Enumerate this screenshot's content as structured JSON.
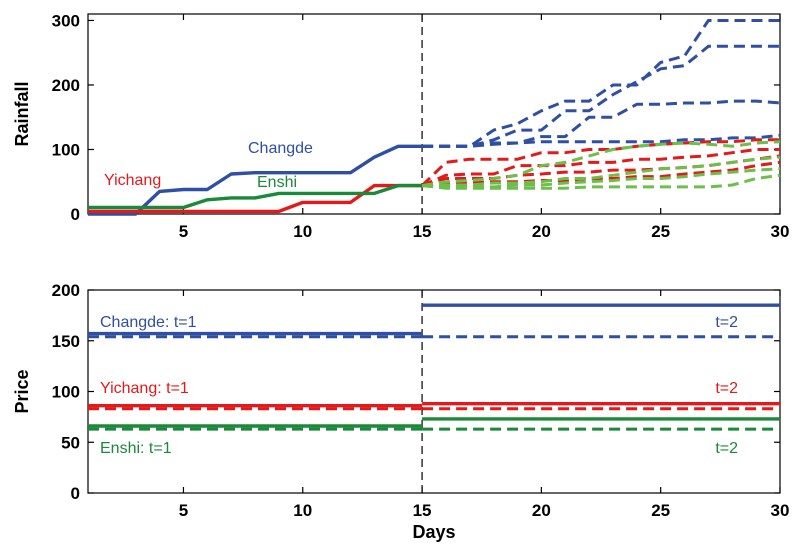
{
  "chart_data": [
    {
      "type": "line",
      "panel": "top",
      "xlabel": "",
      "ylabel": "Rainfall",
      "xlim": [
        1,
        30
      ],
      "ylim": [
        0,
        310
      ],
      "xticks": [
        5,
        10,
        15,
        20,
        25,
        30
      ],
      "yticks": [
        0,
        100,
        200,
        300
      ],
      "grid": false,
      "vline_x": 15,
      "colors": {
        "Changde": "#2e4fa3",
        "Yichang": "#e31a1c",
        "Enshi": "#1a8a3a",
        "Enshi_forecast": "#6cbf4a"
      },
      "series": [
        {
          "name": "Changde",
          "style": "solid",
          "x": [
            1,
            2,
            3,
            4,
            5,
            6,
            7,
            8,
            9,
            10,
            11,
            12,
            13,
            14,
            15
          ],
          "values": [
            0,
            0,
            0,
            35,
            38,
            38,
            62,
            64,
            64,
            64,
            64,
            64,
            88,
            105,
            105
          ]
        },
        {
          "name": "Yichang",
          "style": "solid",
          "x": [
            1,
            2,
            3,
            4,
            5,
            6,
            7,
            8,
            9,
            10,
            11,
            12,
            13,
            14,
            15
          ],
          "values": [
            4,
            4,
            4,
            4,
            4,
            4,
            4,
            4,
            4,
            18,
            18,
            18,
            44,
            44,
            44
          ]
        },
        {
          "name": "Enshi",
          "style": "solid",
          "x": [
            1,
            2,
            3,
            4,
            5,
            6,
            7,
            8,
            9,
            10,
            11,
            12,
            13,
            14,
            15
          ],
          "values": [
            10,
            10,
            10,
            10,
            10,
            22,
            25,
            25,
            32,
            32,
            32,
            32,
            32,
            44,
            44
          ]
        },
        {
          "group": "Changde",
          "style": "dashed",
          "x": [
            15,
            17,
            18,
            19,
            20,
            21,
            22,
            23,
            24,
            25,
            26,
            27,
            28,
            29,
            30
          ],
          "values": [
            105,
            105,
            130,
            140,
            160,
            175,
            175,
            200,
            200,
            235,
            245,
            300,
            300,
            300,
            300
          ]
        },
        {
          "group": "Changde",
          "style": "dashed",
          "x": [
            15,
            17,
            18,
            19,
            20,
            21,
            22,
            23,
            24,
            25,
            26,
            27,
            28,
            29,
            30
          ],
          "values": [
            105,
            105,
            115,
            130,
            130,
            160,
            160,
            185,
            205,
            225,
            230,
            260,
            260,
            260,
            260
          ]
        },
        {
          "group": "Changde",
          "style": "dashed",
          "x": [
            15,
            17,
            18,
            19,
            20,
            21,
            22,
            23,
            24,
            25,
            26,
            27,
            28,
            29,
            30
          ],
          "values": [
            105,
            105,
            108,
            110,
            120,
            120,
            150,
            150,
            170,
            170,
            172,
            172,
            175,
            175,
            172
          ]
        },
        {
          "group": "Changde",
          "style": "dashed",
          "x": [
            15,
            17,
            18,
            19,
            20,
            21,
            22,
            23,
            24,
            25,
            26,
            27,
            28,
            29,
            30
          ],
          "values": [
            105,
            105,
            110,
            110,
            112,
            112,
            112,
            112,
            112,
            112,
            115,
            115,
            118,
            118,
            122
          ]
        },
        {
          "group": "Yichang",
          "style": "dashed",
          "x": [
            15,
            16,
            17,
            18,
            19,
            20,
            21,
            22,
            23,
            24,
            25,
            26,
            27,
            28,
            29,
            30
          ],
          "values": [
            44,
            80,
            85,
            85,
            85,
            95,
            95,
            100,
            100,
            105,
            108,
            110,
            112,
            112,
            115,
            115
          ]
        },
        {
          "group": "Yichang",
          "style": "dashed",
          "x": [
            15,
            16,
            17,
            18,
            19,
            20,
            21,
            22,
            23,
            24,
            25,
            26,
            27,
            28,
            29,
            30
          ],
          "values": [
            44,
            60,
            62,
            62,
            75,
            75,
            75,
            80,
            80,
            85,
            85,
            88,
            90,
            95,
            100,
            100
          ]
        },
        {
          "group": "Yichang",
          "style": "dashed",
          "x": [
            15,
            16,
            17,
            18,
            19,
            20,
            21,
            22,
            23,
            24,
            25,
            26,
            27,
            28,
            29,
            30
          ],
          "values": [
            44,
            55,
            55,
            55,
            60,
            62,
            65,
            65,
            68,
            68,
            70,
            72,
            75,
            80,
            85,
            90
          ]
        },
        {
          "group": "Yichang",
          "style": "dashed",
          "x": [
            15,
            16,
            17,
            18,
            19,
            20,
            21,
            22,
            23,
            24,
            25,
            26,
            27,
            28,
            29,
            30
          ],
          "values": [
            44,
            48,
            48,
            50,
            50,
            52,
            52,
            55,
            55,
            58,
            58,
            62,
            65,
            68,
            75,
            80
          ]
        },
        {
          "group": "Enshi",
          "style": "dashed",
          "x": [
            15,
            16,
            17,
            18,
            19,
            20,
            21,
            22,
            23,
            24,
            25,
            26,
            27,
            28,
            29,
            30
          ],
          "values": [
            44,
            50,
            52,
            55,
            60,
            75,
            80,
            90,
            100,
            105,
            108,
            110,
            108,
            105,
            110,
            112
          ]
        },
        {
          "group": "Enshi",
          "style": "dashed",
          "x": [
            15,
            16,
            17,
            18,
            19,
            20,
            21,
            22,
            23,
            24,
            25,
            26,
            27,
            28,
            29,
            30
          ],
          "values": [
            44,
            45,
            45,
            48,
            48,
            50,
            55,
            55,
            60,
            65,
            70,
            72,
            75,
            80,
            85,
            88
          ]
        },
        {
          "group": "Enshi",
          "style": "dashed",
          "x": [
            15,
            16,
            17,
            18,
            19,
            20,
            21,
            22,
            23,
            24,
            25,
            26,
            27,
            28,
            29,
            30
          ],
          "values": [
            44,
            42,
            42,
            42,
            45,
            45,
            48,
            50,
            52,
            55,
            55,
            58,
            62,
            65,
            68,
            70
          ]
        },
        {
          "group": "Enshi",
          "style": "dashed",
          "x": [
            15,
            16,
            17,
            18,
            19,
            20,
            21,
            22,
            23,
            24,
            25,
            26,
            27,
            28,
            29,
            30
          ],
          "values": [
            44,
            40,
            40,
            40,
            40,
            40,
            40,
            42,
            42,
            42,
            42,
            42,
            42,
            45,
            55,
            60
          ]
        }
      ],
      "annotations": [
        {
          "text": "Changde",
          "color": "#2e4fa3"
        },
        {
          "text": "Yichang",
          "color": "#e31a1c"
        },
        {
          "text": "Enshi",
          "color": "#1a8a3a"
        }
      ]
    },
    {
      "type": "line",
      "panel": "bottom",
      "xlabel": "Days",
      "ylabel": "Price",
      "xlim": [
        1,
        30
      ],
      "ylim": [
        0,
        200
      ],
      "xticks": [
        5,
        10,
        15,
        20,
        25,
        30
      ],
      "yticks": [
        0,
        50,
        100,
        150,
        200
      ],
      "grid": false,
      "vline_x": 15,
      "series": [
        {
          "group": "Changde",
          "period": "t=1",
          "style": "solid",
          "x": [
            1,
            15
          ],
          "values": [
            157,
            157
          ]
        },
        {
          "group": "Changde",
          "period": "t=1",
          "style": "dashed",
          "x": [
            1,
            15
          ],
          "values": [
            154,
            154
          ]
        },
        {
          "group": "Changde",
          "period": "t=2",
          "style": "solid",
          "x": [
            15,
            30
          ],
          "values": [
            185,
            185
          ]
        },
        {
          "group": "Changde",
          "period": "t=2",
          "style": "dashed",
          "x": [
            15,
            30
          ],
          "values": [
            154,
            154
          ]
        },
        {
          "group": "Yichang",
          "period": "t=1",
          "style": "solid",
          "x": [
            1,
            15
          ],
          "values": [
            86,
            86
          ]
        },
        {
          "group": "Yichang",
          "period": "t=1",
          "style": "dashed",
          "x": [
            1,
            15
          ],
          "values": [
            83,
            83
          ]
        },
        {
          "group": "Yichang",
          "period": "t=2",
          "style": "solid",
          "x": [
            15,
            30
          ],
          "values": [
            88,
            88
          ]
        },
        {
          "group": "Yichang",
          "period": "t=2",
          "style": "dashed",
          "x": [
            15,
            30
          ],
          "values": [
            83,
            83
          ]
        },
        {
          "group": "Enshi",
          "period": "t=1",
          "style": "solid",
          "x": [
            1,
            15
          ],
          "values": [
            66,
            66
          ]
        },
        {
          "group": "Enshi",
          "period": "t=1",
          "style": "dashed",
          "x": [
            1,
            15
          ],
          "values": [
            63,
            63
          ]
        },
        {
          "group": "Enshi",
          "period": "t=2",
          "style": "solid",
          "x": [
            15,
            30
          ],
          "values": [
            73,
            73
          ]
        },
        {
          "group": "Enshi",
          "period": "t=2",
          "style": "dashed",
          "x": [
            15,
            30
          ],
          "values": [
            63,
            63
          ]
        }
      ],
      "annotations": [
        {
          "text": "Changde: t=1",
          "color": "#2e4fa3"
        },
        {
          "text": "t=2",
          "color": "#2e4fa3"
        },
        {
          "text": "Yichang: t=1",
          "color": "#e31a1c"
        },
        {
          "text": "t=2",
          "color": "#e31a1c"
        },
        {
          "text": "Enshi: t=1",
          "color": "#1a8a3a"
        },
        {
          "text": "t=2",
          "color": "#1a8a3a"
        }
      ]
    }
  ]
}
